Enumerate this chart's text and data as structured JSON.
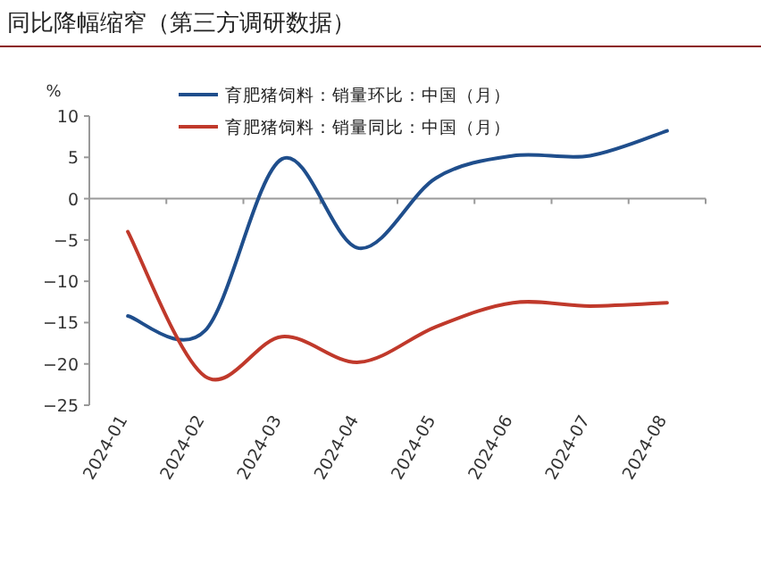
{
  "chart_data": {
    "type": "line",
    "title": "同比降幅缩窄（第三方调研数据）",
    "ylabel": "%",
    "categories": [
      "2024-01",
      "2024-02",
      "2024-03",
      "2024-04",
      "2024-05",
      "2024-06",
      "2024-07",
      "2024-08"
    ],
    "series": [
      {
        "name": "育肥猪饲料：销量环比：中国（月）",
        "color": "#1f4e8c",
        "values": [
          -14.2,
          -16,
          4.8,
          -6,
          2.5,
          5.2,
          5.2,
          8.2
        ]
      },
      {
        "name": "育肥猪饲料：销量同比：中国（月）",
        "color": "#c0392b",
        "values": [
          -4,
          -21.5,
          -16.7,
          -19.8,
          -15.5,
          -12.6,
          -13,
          -12.6
        ]
      }
    ],
    "ylim": [
      -25,
      10
    ],
    "yticks": [
      -25,
      -20,
      -15,
      -10,
      -5,
      0,
      5,
      10
    ],
    "legend": "top left"
  }
}
